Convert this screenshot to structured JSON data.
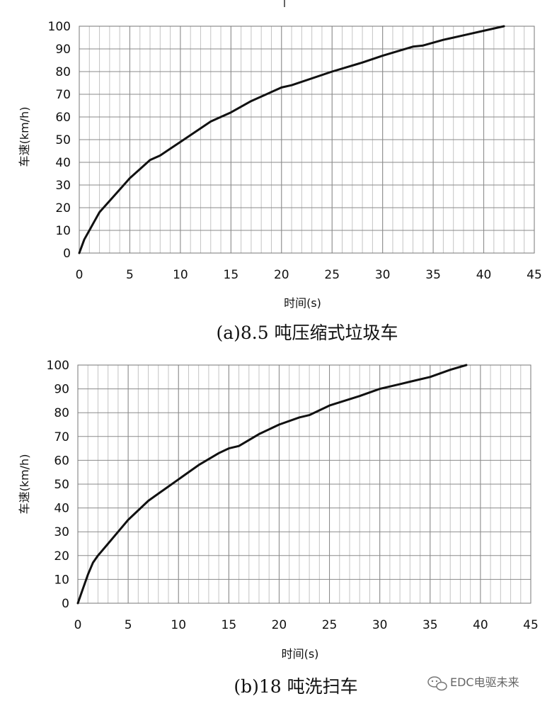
{
  "chart_data": [
    {
      "type": "line",
      "caption": "(a)8.5 吨压缩式垃圾车",
      "xlabel": "时间(s)",
      "ylabel": "车速(km/h)",
      "xlim": [
        0,
        45
      ],
      "ylim": [
        0,
        100
      ],
      "xticks": [
        0,
        5,
        10,
        15,
        20,
        25,
        30,
        35,
        40,
        45
      ],
      "yticks": [
        0,
        10,
        20,
        30,
        40,
        50,
        60,
        70,
        80,
        90,
        100
      ],
      "grid": true,
      "series": [
        {
          "x": [
            0,
            0.5,
            1,
            1.5,
            2,
            3,
            4,
            5,
            6,
            7,
            8,
            9,
            10,
            12,
            13,
            14,
            15,
            17,
            20,
            21,
            25,
            28,
            30,
            33,
            34,
            36,
            38,
            40,
            42
          ],
          "y": [
            0,
            6,
            10,
            14,
            18,
            23,
            28,
            33,
            37,
            41,
            43,
            46,
            49,
            55,
            58,
            60,
            62,
            67,
            73,
            74,
            80,
            84,
            87,
            91,
            91.5,
            94,
            96,
            98,
            100
          ]
        }
      ]
    },
    {
      "type": "line",
      "caption": "(b)18 吨洗扫车",
      "xlabel": "时间(s)",
      "ylabel": "车速(km/h)",
      "xlim": [
        0,
        45
      ],
      "ylim": [
        0,
        100
      ],
      "xticks": [
        0,
        5,
        10,
        15,
        20,
        25,
        30,
        35,
        40,
        45
      ],
      "yticks": [
        0,
        10,
        20,
        30,
        40,
        50,
        60,
        70,
        80,
        90,
        100
      ],
      "grid": true,
      "series": [
        {
          "x": [
            0,
            0.5,
            1,
            1.5,
            2,
            3,
            4,
            5,
            6,
            7,
            8,
            9,
            10,
            12,
            14,
            15,
            16,
            18,
            20,
            22,
            23,
            25,
            28,
            30,
            32,
            33,
            35,
            37,
            38.6
          ],
          "y": [
            0,
            6,
            12,
            17,
            20,
            25,
            30,
            35,
            39,
            43,
            46,
            49,
            52,
            58,
            63,
            65,
            66,
            71,
            75,
            78,
            79,
            83,
            87,
            90,
            92,
            93,
            95,
            98,
            100
          ]
        }
      ]
    }
  ],
  "watermark": "EDC电驱未来",
  "icon": "wechat-icon"
}
